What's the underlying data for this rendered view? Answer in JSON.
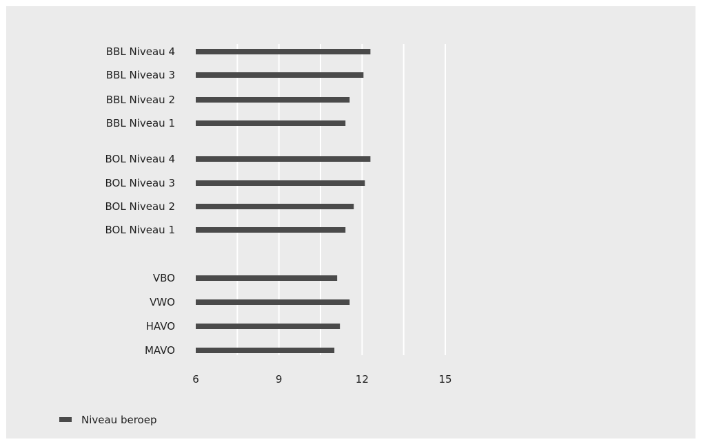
{
  "chart_data": {
    "type": "bar",
    "orientation": "horizontal",
    "categories": [
      "BBL Niveau 4",
      "BBL Niveau 3",
      "BBL Niveau 2",
      "BBL Niveau 1",
      "BOL Niveau 4",
      "BOL Niveau 3",
      "BOL Niveau 2",
      "BOL Niveau 1",
      "VBO",
      "VWO",
      "HAVO",
      "MAVO"
    ],
    "series": [
      {
        "name": "Niveau beroep",
        "values": [
          12.3,
          12.05,
          11.55,
          11.4,
          12.3,
          12.1,
          11.7,
          11.4,
          11.1,
          11.55,
          11.2,
          11.0
        ],
        "color": "#4a4a4a"
      }
    ],
    "xlim": [
      6,
      15
    ],
    "xticks": [
      6,
      9,
      12,
      15
    ],
    "grid": true,
    "legend_position": "bottom-left",
    "colors": {
      "background": "#ebebeb",
      "gridline": "#ffffff",
      "bar": "#4a4a4a",
      "text": "#1e1e1e"
    }
  }
}
